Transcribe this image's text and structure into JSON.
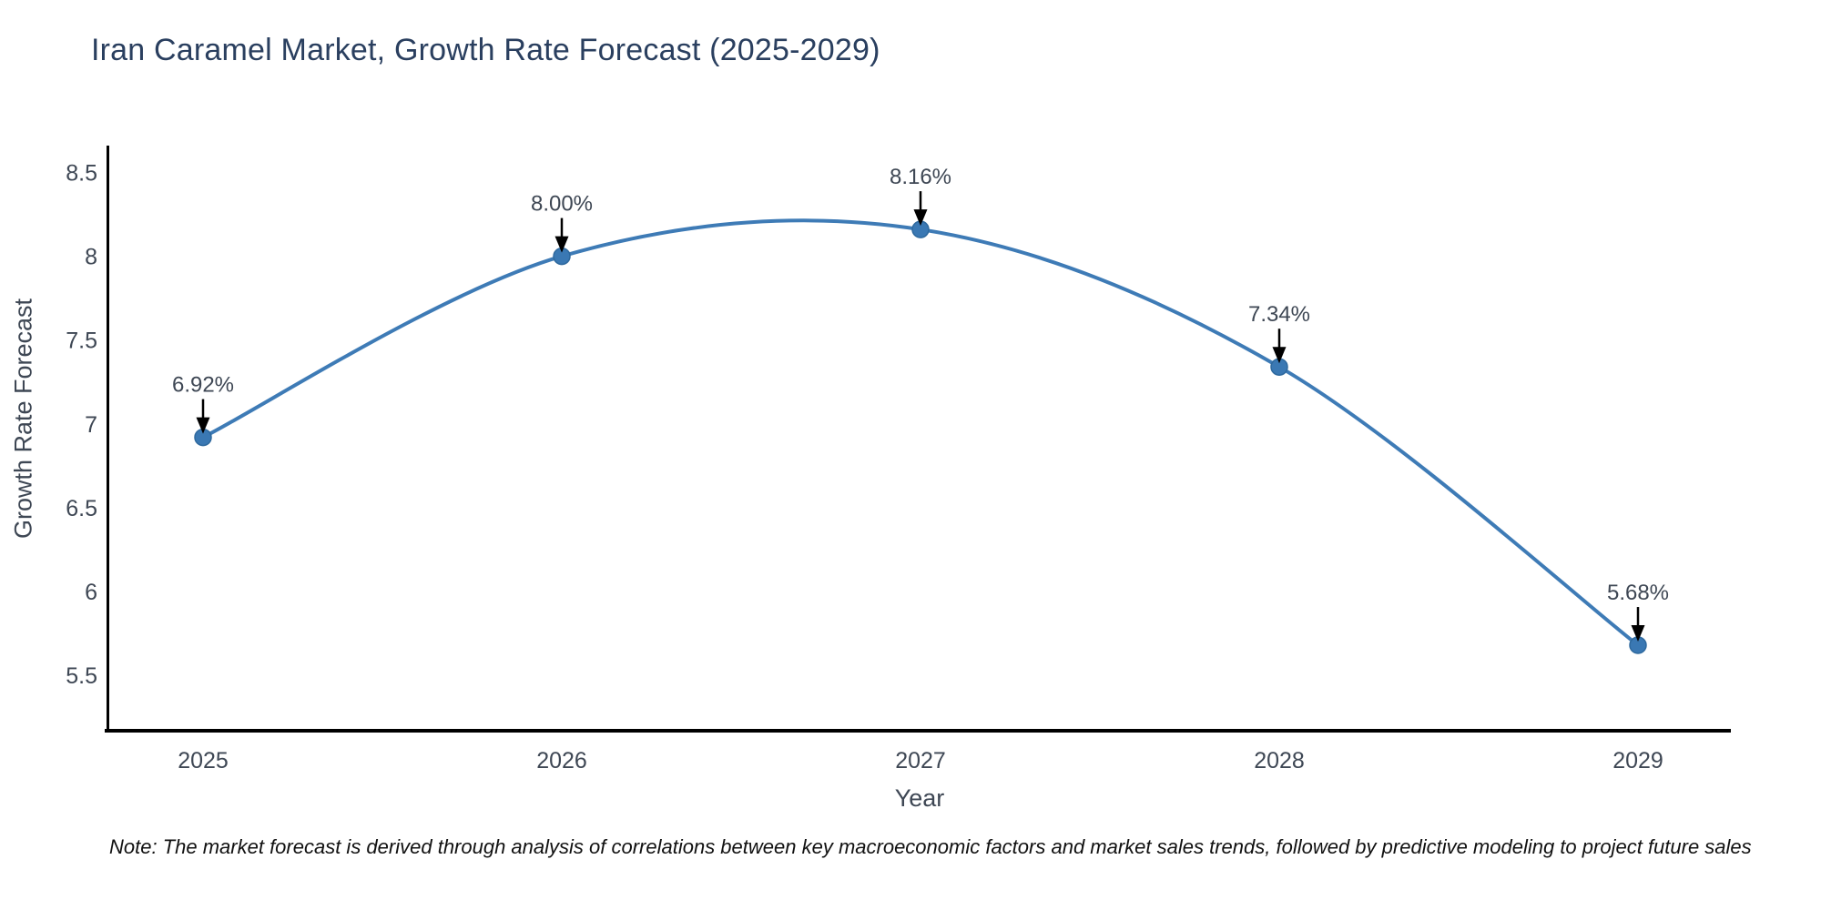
{
  "chart": {
    "title": "Iran Caramel Market, Growth Rate Forecast (2025-2029)",
    "note": "Note: The market forecast is derived through analysis of correlations between key macroeconomic factors and market sales trends, followed by predictive modeling to project future sales",
    "xlabel": "Year",
    "ylabel": "Growth Rate Forecast"
  },
  "chart_data": {
    "type": "line",
    "title": "Iran Caramel Market, Growth Rate Forecast (2025-2029)",
    "categories": [
      "2025",
      "2026",
      "2027",
      "2028",
      "2029"
    ],
    "values": [
      6.92,
      8.0,
      8.16,
      7.34,
      5.68
    ],
    "point_labels": [
      "6.92%",
      "8.00%",
      "8.16%",
      "7.34%",
      "5.68%"
    ],
    "xlabel": "Year",
    "ylabel": "Growth Rate Forecast",
    "yticks": [
      8.5,
      8,
      7.5,
      7,
      6.5,
      6,
      5.5
    ],
    "ylim": [
      5.17,
      8.66
    ],
    "grid": false,
    "legend": "none",
    "curve": "spline",
    "line_color": "#3e7bb6",
    "marker_color": "#3a78b3",
    "marker_edge_color": "#2e699e",
    "axis_color": "#000000",
    "tick_color": "#3e4754",
    "annotation_color": "#3e4754",
    "arrow_color": "#000000",
    "title_color": "#2a3f5f"
  }
}
